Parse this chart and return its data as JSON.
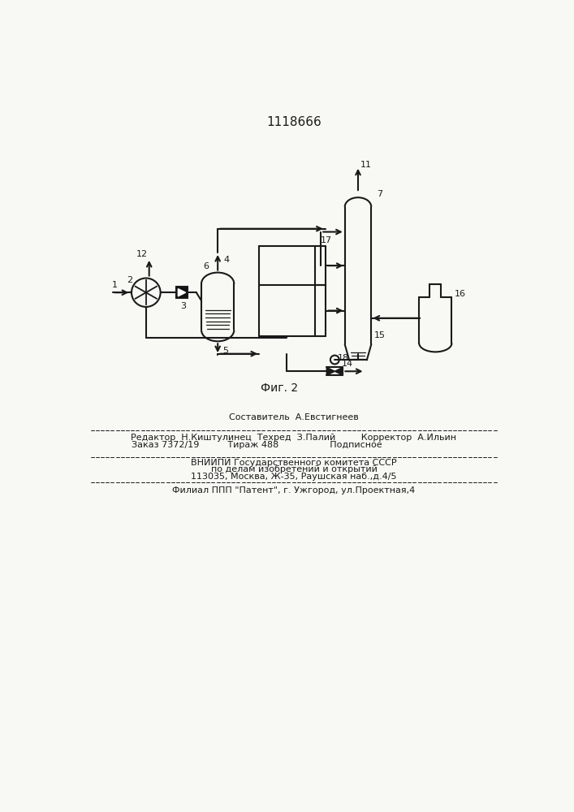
{
  "title": "1118666",
  "fig_label": "Фиг. 2",
  "bg_color": "#f8f8f5",
  "line_color": "#1a1a1a",
  "footer_lines": [
    "Составитель  А.Евстигнеев",
    "Редактор  Н.Киштулинец  Техред  З.Палий         Корректор  А.Ильин",
    "Заказ 7372/19          Тираж 488                  Подписное",
    "ВНИИПИ Государственного комитета СССР",
    "по делам изобретений и открытий",
    "113035, Москва, Ж-35, Раушская наб.,д.4/5",
    "Филиал ППП \"Патент\", г. Ужгород, ул.Проектная,4"
  ]
}
